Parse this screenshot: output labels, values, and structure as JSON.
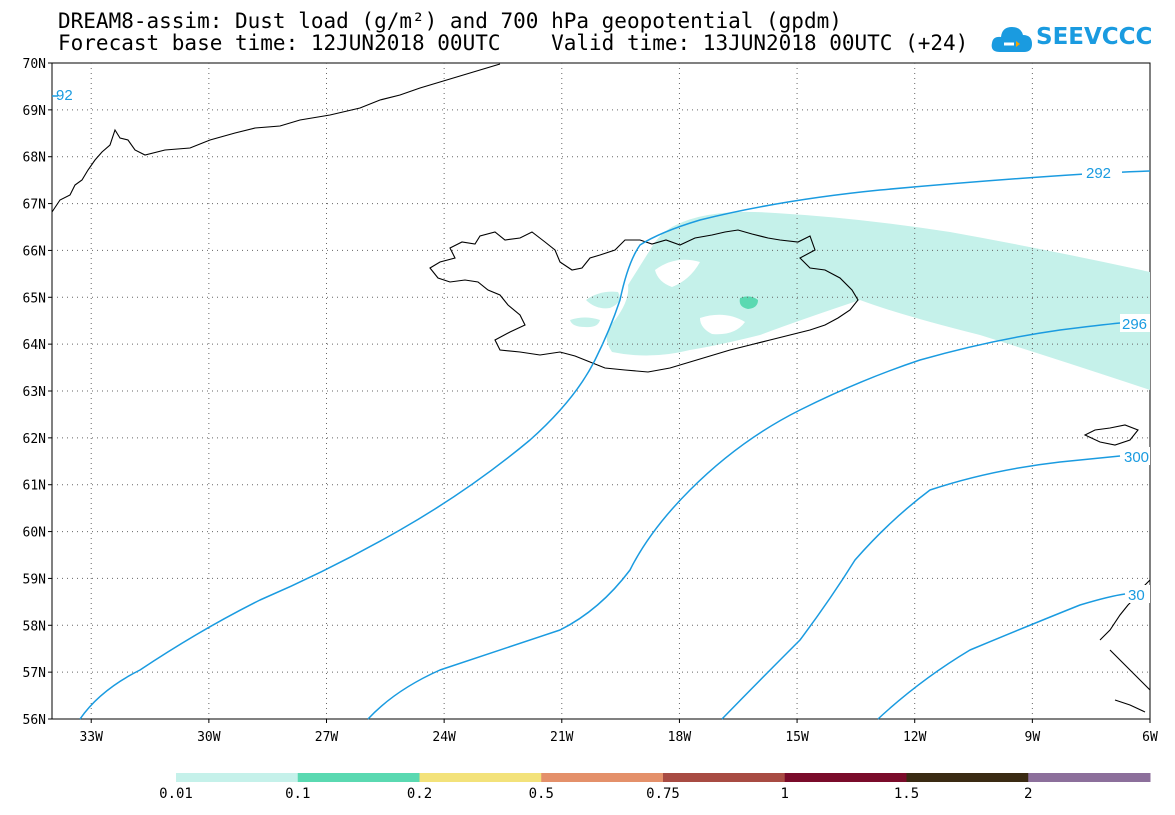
{
  "title": {
    "line1": "DREAM8-assim: Dust load (g/m²) and 700 hPa geopotential (gpdm)",
    "line2": "Forecast base time: 12JUN2018 00UTC    Valid time: 13JUN2018 00UTC (+24)"
  },
  "logo": {
    "text": "SEEVCCC",
    "icon": "cloud-icon",
    "color": "#1a9be0"
  },
  "map": {
    "lon_range": [
      -34,
      -6
    ],
    "lat_range": [
      56,
      70
    ],
    "lon_ticks": [
      "33W",
      "30W",
      "27W",
      "24W",
      "21W",
      "18W",
      "15W",
      "12W",
      "9W",
      "6W"
    ],
    "lat_ticks": [
      "56N",
      "57N",
      "58N",
      "59N",
      "60N",
      "61N",
      "62N",
      "63N",
      "64N",
      "65N",
      "66N",
      "67N",
      "68N",
      "69N",
      "70N"
    ],
    "contour_color": "#1a9be0",
    "contours": [
      {
        "label": "292",
        "label_top": "92"
      },
      {
        "label": "296"
      },
      {
        "label": "300"
      },
      {
        "label": "30"
      }
    ]
  },
  "colorbar": {
    "colors": [
      "#c5f1ea",
      "#5ad9b1",
      "#f3e27a",
      "#e4906a",
      "#a84b43",
      "#7a0b2a",
      "#3a2a13",
      "#8c6f9b"
    ],
    "labels": [
      "0.01",
      "0.1",
      "0.2",
      "0.5",
      "0.75",
      "1",
      "1.5",
      "2"
    ]
  }
}
